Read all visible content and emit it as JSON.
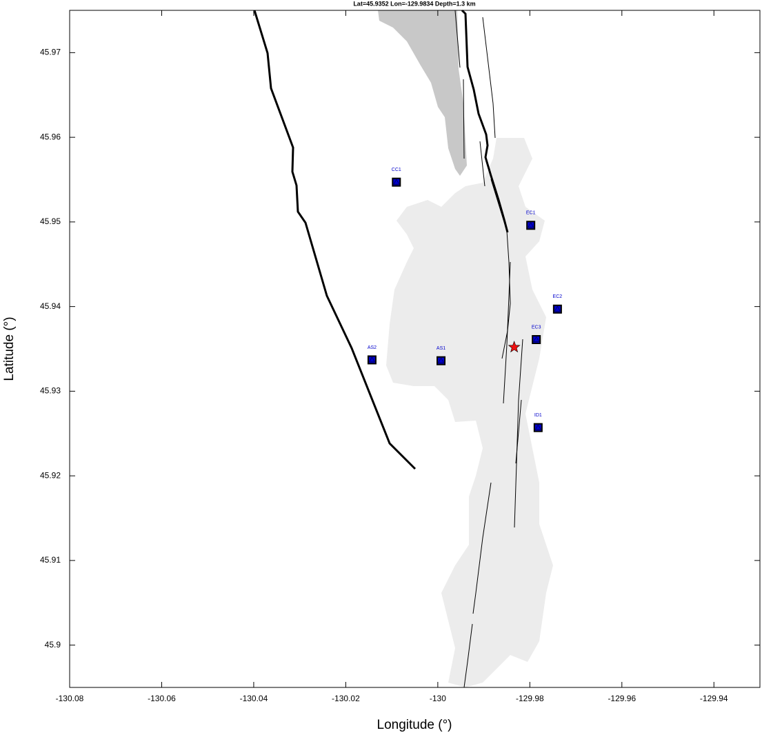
{
  "chart_data": {
    "type": "scatter",
    "title": "Lat=45.9352  Lon=-129.9834  Depth=1.3 km",
    "x_label": "Longitude (°)",
    "y_label": "Latitude (°)",
    "xlim": [
      -130.08,
      -129.93
    ],
    "ylim": [
      45.895,
      45.975
    ],
    "xticks": [
      -130.08,
      -130.06,
      -130.04,
      -130.02,
      -130,
      -129.98,
      -129.96,
      -129.94
    ],
    "yticks": [
      45.9,
      45.91,
      45.92,
      45.93,
      45.94,
      45.95,
      45.96,
      45.97
    ],
    "stations": {
      "color": "#0000cc",
      "labels": [
        "CC1",
        "EC1",
        "EC2",
        "EC3",
        "AS2",
        "AS1",
        "ID1"
      ],
      "x": [
        -130.009,
        -129.9798,
        -129.974,
        -129.9786,
        -130.0143,
        -129.9993,
        -129.9782
      ],
      "y": [
        45.9547,
        45.9496,
        45.9397,
        45.9361,
        45.9337,
        45.9336,
        45.9257
      ]
    },
    "event": {
      "color": "#ee1111",
      "x": -129.9834,
      "y": 45.9352
    }
  }
}
